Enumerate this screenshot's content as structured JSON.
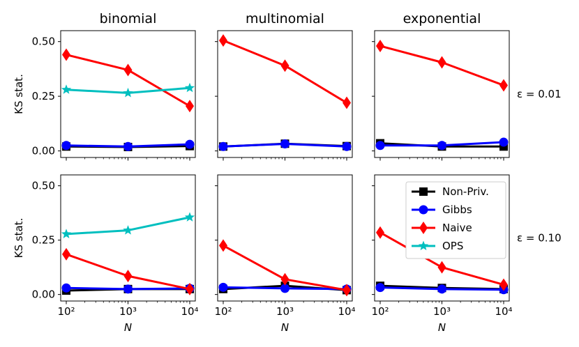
{
  "chart_data": {
    "type": "line",
    "layout": "2x3 grid of small multiples",
    "column_titles": [
      "binomial",
      "multinomial",
      "exponential"
    ],
    "row_labels": [
      "ε = 0.01",
      "ε = 0.10"
    ],
    "xlabel": "N",
    "ylabel": "KS stat.",
    "x": [
      100,
      1000,
      10000
    ],
    "x_tick_labels": [
      "10²",
      "10³",
      "10⁴"
    ],
    "x_scale": "log",
    "y_ticks": [
      0.0,
      0.25,
      0.5
    ],
    "y_tick_labels": [
      "0.00",
      "0.25",
      "0.50"
    ],
    "ylim": [
      -0.03,
      0.55
    ],
    "legend_placement": "bottom-right panel, top-right",
    "legend": [
      {
        "name": "Non-Priv.",
        "color": "#000000",
        "marker": "square"
      },
      {
        "name": "Gibbs",
        "color": "#0000ff",
        "marker": "circle"
      },
      {
        "name": "Naive",
        "color": "#ff0000",
        "marker": "diamond"
      },
      {
        "name": "OPS",
        "color": "#00bfbf",
        "marker": "star"
      }
    ],
    "panels": [
      {
        "row": 0,
        "col": 0,
        "series": [
          {
            "name": "Non-Priv.",
            "values": [
              0.02,
              0.018,
              0.022
            ]
          },
          {
            "name": "Gibbs",
            "values": [
              0.025,
              0.02,
              0.03
            ]
          },
          {
            "name": "Naive",
            "values": [
              0.44,
              0.37,
              0.205
            ]
          },
          {
            "name": "OPS",
            "values": [
              0.28,
              0.265,
              0.288
            ]
          }
        ]
      },
      {
        "row": 0,
        "col": 1,
        "series": [
          {
            "name": "Non-Priv.",
            "values": [
              0.02,
              0.033,
              0.022
            ]
          },
          {
            "name": "Gibbs",
            "values": [
              0.02,
              0.032,
              0.02
            ]
          },
          {
            "name": "Naive",
            "values": [
              0.505,
              0.39,
              0.22
            ]
          }
        ]
      },
      {
        "row": 0,
        "col": 2,
        "series": [
          {
            "name": "Non-Priv.",
            "values": [
              0.035,
              0.02,
              0.02
            ]
          },
          {
            "name": "Gibbs",
            "values": [
              0.025,
              0.025,
              0.04
            ]
          },
          {
            "name": "Naive",
            "values": [
              0.48,
              0.405,
              0.3
            ]
          }
        ]
      },
      {
        "row": 1,
        "col": 0,
        "series": [
          {
            "name": "Non-Priv.",
            "values": [
              0.018,
              0.025,
              0.025
            ]
          },
          {
            "name": "Gibbs",
            "values": [
              0.03,
              0.025,
              0.028
            ]
          },
          {
            "name": "Naive",
            "values": [
              0.185,
              0.085,
              0.025
            ]
          },
          {
            "name": "OPS",
            "values": [
              0.278,
              0.295,
              0.355
            ]
          }
        ]
      },
      {
        "row": 1,
        "col": 1,
        "series": [
          {
            "name": "Non-Priv.",
            "values": [
              0.025,
              0.04,
              0.02
            ]
          },
          {
            "name": "Gibbs",
            "values": [
              0.033,
              0.028,
              0.025
            ]
          },
          {
            "name": "Naive",
            "values": [
              0.225,
              0.07,
              0.02
            ]
          }
        ]
      },
      {
        "row": 1,
        "col": 2,
        "series": [
          {
            "name": "Non-Priv.",
            "values": [
              0.04,
              0.03,
              0.025
            ]
          },
          {
            "name": "Gibbs",
            "values": [
              0.032,
              0.025,
              0.022
            ]
          },
          {
            "name": "Naive",
            "values": [
              0.285,
              0.125,
              0.045
            ]
          }
        ]
      }
    ]
  }
}
